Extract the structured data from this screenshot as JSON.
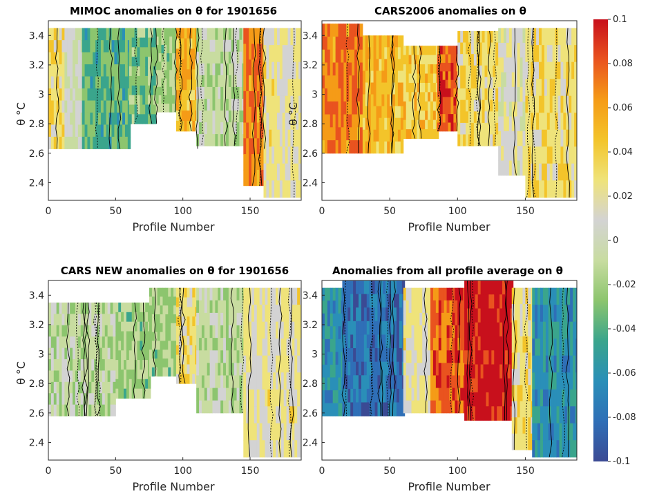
{
  "chart_data": [
    {
      "type": "heatmap",
      "title": "MIMOC anomalies on θ  for 1901656",
      "xlabel": "Profile Number",
      "ylabel": "θ °C",
      "xlim": [
        0,
        188
      ],
      "ylim": [
        2.28,
        3.5
      ],
      "xticks": [
        "0",
        "50",
        "100",
        "150"
      ],
      "yticks": [
        "2.4",
        "2.6",
        "2.8",
        "3",
        "3.2",
        "3.4"
      ],
      "profile_count": 188,
      "column_groups": [
        {
          "from": 1,
          "to": 12,
          "mean_anomaly": 0.03,
          "top": 3.45,
          "bottom": 2.63
        },
        {
          "from": 13,
          "to": 25,
          "mean_anomaly": 0.0,
          "top": 3.45,
          "bottom": 2.63
        },
        {
          "from": 26,
          "to": 60,
          "mean_anomaly": -0.04,
          "top": 3.45,
          "bottom": 2.63
        },
        {
          "from": 61,
          "to": 80,
          "mean_anomaly": -0.03,
          "top": 3.45,
          "bottom": 2.8
        },
        {
          "from": 81,
          "to": 95,
          "mean_anomaly": -0.02,
          "top": 3.45,
          "bottom": 2.88
        },
        {
          "from": 96,
          "to": 110,
          "mean_anomaly": 0.05,
          "top": 3.45,
          "bottom": 2.75
        },
        {
          "from": 111,
          "to": 145,
          "mean_anomaly": -0.01,
          "top": 3.45,
          "bottom": 2.65
        },
        {
          "from": 146,
          "to": 160,
          "mean_anomaly": 0.07,
          "top": 3.45,
          "bottom": 2.38
        },
        {
          "from": 161,
          "to": 188,
          "mean_anomaly": 0.02,
          "top": 3.45,
          "bottom": 2.3
        }
      ]
    },
    {
      "type": "heatmap",
      "title": "CARS2006 anomalies on θ",
      "xlabel": "Profile Number",
      "ylabel": "θ °C",
      "xlim": [
        0,
        188
      ],
      "ylim": [
        2.28,
        3.5
      ],
      "xticks": [
        "0",
        "50",
        "100",
        "150"
      ],
      "yticks": [
        "2.4",
        "2.6",
        "2.8",
        "3",
        "3.2",
        "3.4"
      ],
      "profile_count": 188,
      "column_groups": [
        {
          "from": 1,
          "to": 30,
          "mean_anomaly": 0.07,
          "top": 3.48,
          "bottom": 2.6
        },
        {
          "from": 31,
          "to": 60,
          "mean_anomaly": 0.05,
          "top": 3.4,
          "bottom": 2.6
        },
        {
          "from": 61,
          "to": 85,
          "mean_anomaly": 0.04,
          "top": 3.33,
          "bottom": 2.7
        },
        {
          "from": 86,
          "to": 100,
          "mean_anomaly": 0.08,
          "top": 3.33,
          "bottom": 2.75
        },
        {
          "from": 101,
          "to": 130,
          "mean_anomaly": 0.03,
          "top": 3.43,
          "bottom": 2.65
        },
        {
          "from": 131,
          "to": 150,
          "mean_anomaly": 0.01,
          "top": 3.45,
          "bottom": 2.45
        },
        {
          "from": 151,
          "to": 188,
          "mean_anomaly": 0.03,
          "top": 3.45,
          "bottom": 2.3
        }
      ]
    },
    {
      "type": "heatmap",
      "title": "CARS NEW anomalies on θ for 1901656",
      "xlabel": "Profile Number",
      "ylabel": "θ °C",
      "xlim": [
        0,
        188
      ],
      "ylim": [
        2.28,
        3.5
      ],
      "xticks": [
        "0",
        "50",
        "100",
        "150"
      ],
      "yticks": [
        "2.4",
        "2.6",
        "2.8",
        "3",
        "3.2",
        "3.4"
      ],
      "profile_count": 188,
      "column_groups": [
        {
          "from": 1,
          "to": 50,
          "mean_anomaly": -0.01,
          "top": 3.35,
          "bottom": 2.58
        },
        {
          "from": 51,
          "to": 75,
          "mean_anomaly": -0.02,
          "top": 3.35,
          "bottom": 2.7
        },
        {
          "from": 76,
          "to": 95,
          "mean_anomaly": -0.02,
          "top": 3.45,
          "bottom": 2.85
        },
        {
          "from": 96,
          "to": 110,
          "mean_anomaly": 0.03,
          "top": 3.45,
          "bottom": 2.8
        },
        {
          "from": 111,
          "to": 145,
          "mean_anomaly": -0.01,
          "top": 3.45,
          "bottom": 2.6
        },
        {
          "from": 146,
          "to": 188,
          "mean_anomaly": 0.02,
          "top": 3.45,
          "bottom": 2.3
        }
      ]
    },
    {
      "type": "heatmap",
      "title": "Anomalies from all profile average on θ",
      "xlabel": "Profile Number",
      "ylabel": "",
      "xlim": [
        0,
        188
      ],
      "ylim": [
        2.28,
        3.5
      ],
      "xticks": [
        "0",
        "50",
        "100",
        "150"
      ],
      "yticks": [
        "2.4",
        "2.6",
        "2.8",
        "3",
        "3.2",
        "3.4"
      ],
      "profile_count": 188,
      "column_groups": [
        {
          "from": 1,
          "to": 15,
          "mean_anomaly": -0.06,
          "top": 3.45,
          "bottom": 2.58
        },
        {
          "from": 16,
          "to": 60,
          "mean_anomaly": -0.08,
          "top": 3.5,
          "bottom": 2.58
        },
        {
          "from": 61,
          "to": 80,
          "mean_anomaly": 0.02,
          "top": 3.45,
          "bottom": 2.6
        },
        {
          "from": 81,
          "to": 105,
          "mean_anomaly": 0.08,
          "top": 3.45,
          "bottom": 2.6
        },
        {
          "from": 106,
          "to": 140,
          "mean_anomaly": 0.1,
          "top": 3.5,
          "bottom": 2.55
        },
        {
          "from": 141,
          "to": 155,
          "mean_anomaly": 0.03,
          "top": 3.45,
          "bottom": 2.35
        },
        {
          "from": 156,
          "to": 188,
          "mean_anomaly": -0.06,
          "top": 3.45,
          "bottom": 2.3
        }
      ]
    }
  ],
  "colorbar": {
    "min": -0.1,
    "max": 0.1,
    "ticks": [
      "0.1",
      "0.08",
      "0.06",
      "0.04",
      "0.02",
      "0",
      "-0.02",
      "-0.04",
      "-0.06",
      "-0.08",
      "-0.1"
    ],
    "colors": [
      "#3b4a94",
      "#2f6fb7",
      "#2a8fb8",
      "#3aa58c",
      "#8cc56e",
      "#c8dca0",
      "#d3d3d3",
      "#efe37a",
      "#f3c42a",
      "#f59b17",
      "#e9531f",
      "#c8101c"
    ]
  }
}
